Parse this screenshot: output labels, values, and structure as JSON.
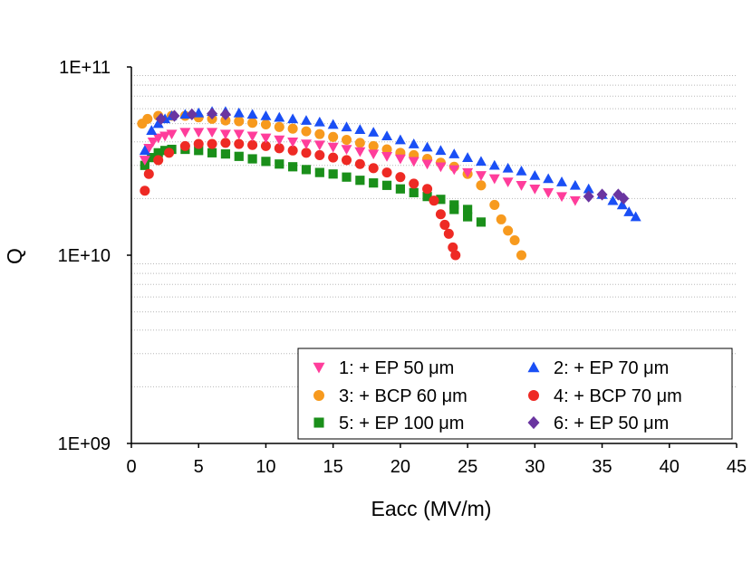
{
  "chart_data": {
    "type": "scatter",
    "xlabel": "Eacc (MV/m)",
    "ylabel": "Q",
    "xlim": [
      0,
      45
    ],
    "ylim": [
      1000000000.0,
      100000000000.0
    ],
    "yscale": "log",
    "x_ticks": [
      "0",
      "5",
      "10",
      "15",
      "20",
      "25",
      "30",
      "35",
      "40",
      "45"
    ],
    "y_ticks": [
      "1E+09",
      "1E+10",
      "1E+11"
    ],
    "grid": "horizontal-minor-dotted",
    "legend_placement": "bottom-right-inside",
    "series": [
      {
        "name": "1: + EP 50 μm",
        "marker": "triangle-down",
        "color": "#ff3d9b",
        "points": [
          [
            1.0,
            32000000000.0
          ],
          [
            1.3,
            37000000000.0
          ],
          [
            1.6,
            40000000000.0
          ],
          [
            2.0,
            42000000000.0
          ],
          [
            2.5,
            43000000000.0
          ],
          [
            3.0,
            44000000000.0
          ],
          [
            4.0,
            45000000000.0
          ],
          [
            5.0,
            45000000000.0
          ],
          [
            6.0,
            45000000000.0
          ],
          [
            7.0,
            44000000000.0
          ],
          [
            8.0,
            44000000000.0
          ],
          [
            9.0,
            43000000000.0
          ],
          [
            10.0,
            42000000000.0
          ],
          [
            11.0,
            41000000000.0
          ],
          [
            12.0,
            40000000000.0
          ],
          [
            13.0,
            39000000000.0
          ],
          [
            14.0,
            38500000000.0
          ],
          [
            15.0,
            37500000000.0
          ],
          [
            16.0,
            36500000000.0
          ],
          [
            17.0,
            35500000000.0
          ],
          [
            18.0,
            34500000000.0
          ],
          [
            19.0,
            33500000000.0
          ],
          [
            20.0,
            32500000000.0
          ],
          [
            21.0,
            31500000000.0
          ],
          [
            22.0,
            30500000000.0
          ],
          [
            23.0,
            29500000000.0
          ],
          [
            24.0,
            28500000000.0
          ],
          [
            25.0,
            27500000000.0
          ],
          [
            26.0,
            26500000000.0
          ],
          [
            27.0,
            25500000000.0
          ],
          [
            28.0,
            24500000000.0
          ],
          [
            29.0,
            23500000000.0
          ],
          [
            30.0,
            22500000000.0
          ],
          [
            31.0,
            21500000000.0
          ],
          [
            32.0,
            20500000000.0
          ],
          [
            33.0,
            19500000000.0
          ]
        ]
      },
      {
        "name": "2: + EP 70 μm",
        "marker": "triangle-up",
        "color": "#1a4ff5",
        "points": [
          [
            1.0,
            36000000000.0
          ],
          [
            1.5,
            46000000000.0
          ],
          [
            2.0,
            50000000000.0
          ],
          [
            2.5,
            53000000000.0
          ],
          [
            3.0,
            55000000000.0
          ],
          [
            4.0,
            56000000000.0
          ],
          [
            5.0,
            57000000000.0
          ],
          [
            6.0,
            58000000000.0
          ],
          [
            7.0,
            58000000000.0
          ],
          [
            8.0,
            57000000000.0
          ],
          [
            9.0,
            56000000000.0
          ],
          [
            10.0,
            55000000000.0
          ],
          [
            11.0,
            54000000000.0
          ],
          [
            12.0,
            53000000000.0
          ],
          [
            13.0,
            52000000000.0
          ],
          [
            14.0,
            51000000000.0
          ],
          [
            15.0,
            49500000000.0
          ],
          [
            16.0,
            48000000000.0
          ],
          [
            17.0,
            46500000000.0
          ],
          [
            18.0,
            45000000000.0
          ],
          [
            19.0,
            43000000000.0
          ],
          [
            20.0,
            41000000000.0
          ],
          [
            21.0,
            39000000000.0
          ],
          [
            22.0,
            37500000000.0
          ],
          [
            23.0,
            36000000000.0
          ],
          [
            24.0,
            34500000000.0
          ],
          [
            25.0,
            33000000000.0
          ],
          [
            26.0,
            31500000000.0
          ],
          [
            27.0,
            30000000000.0
          ],
          [
            28.0,
            29000000000.0
          ],
          [
            29.0,
            28000000000.0
          ],
          [
            30.0,
            26500000000.0
          ],
          [
            31.0,
            25500000000.0
          ],
          [
            32.0,
            24500000000.0
          ],
          [
            33.0,
            23500000000.0
          ],
          [
            34.0,
            22500000000.0
          ],
          [
            35.0,
            21000000000.0
          ],
          [
            35.8,
            19500000000.0
          ],
          [
            36.5,
            18500000000.0
          ],
          [
            37.0,
            17000000000.0
          ],
          [
            37.5,
            16000000000.0
          ]
        ]
      },
      {
        "name": "3: + BCP 60 μm",
        "marker": "circle",
        "color": "#f79a1e",
        "points": [
          [
            0.8,
            50000000000.0
          ],
          [
            1.2,
            53000000000.0
          ],
          [
            2.0,
            55000000000.0
          ],
          [
            3.0,
            55000000000.0
          ],
          [
            4.0,
            55000000000.0
          ],
          [
            5.0,
            54000000000.0
          ],
          [
            6.0,
            53000000000.0
          ],
          [
            7.0,
            52000000000.0
          ],
          [
            8.0,
            51500000000.0
          ],
          [
            9.0,
            50500000000.0
          ],
          [
            10.0,
            49500000000.0
          ],
          [
            11.0,
            48000000000.0
          ],
          [
            12.0,
            47000000000.0
          ],
          [
            13.0,
            45500000000.0
          ],
          [
            14.0,
            44000000000.0
          ],
          [
            15.0,
            42500000000.0
          ],
          [
            16.0,
            41000000000.0
          ],
          [
            17.0,
            39500000000.0
          ],
          [
            18.0,
            38000000000.0
          ],
          [
            19.0,
            36500000000.0
          ],
          [
            20.0,
            35000000000.0
          ],
          [
            21.0,
            34000000000.0
          ],
          [
            22.0,
            32500000000.0
          ],
          [
            23.0,
            31000000000.0
          ],
          [
            24.0,
            29500000000.0
          ],
          [
            25.0,
            27000000000.0
          ],
          [
            26.0,
            23500000000.0
          ],
          [
            27.0,
            18500000000.0
          ],
          [
            27.5,
            15500000000.0
          ],
          [
            28.0,
            13500000000.0
          ],
          [
            28.5,
            12000000000.0
          ],
          [
            29.0,
            10000000000.0
          ]
        ]
      },
      {
        "name": "4: + BCP 70 μm",
        "marker": "circle",
        "color": "#ee2a24",
        "points": [
          [
            1.0,
            22000000000.0
          ],
          [
            1.3,
            27000000000.0
          ],
          [
            2.0,
            32000000000.0
          ],
          [
            2.8,
            35000000000.0
          ],
          [
            4.0,
            38000000000.0
          ],
          [
            5.0,
            39000000000.0
          ],
          [
            6.0,
            39000000000.0
          ],
          [
            7.0,
            39500000000.0
          ],
          [
            8.0,
            39000000000.0
          ],
          [
            9.0,
            38500000000.0
          ],
          [
            10.0,
            38000000000.0
          ],
          [
            11.0,
            37000000000.0
          ],
          [
            12.0,
            36000000000.0
          ],
          [
            13.0,
            35000000000.0
          ],
          [
            14.0,
            34000000000.0
          ],
          [
            15.0,
            33000000000.0
          ],
          [
            16.0,
            32000000000.0
          ],
          [
            17.0,
            30500000000.0
          ],
          [
            18.0,
            29000000000.0
          ],
          [
            19.0,
            27500000000.0
          ],
          [
            20.0,
            26000000000.0
          ],
          [
            21.0,
            24000000000.0
          ],
          [
            22.0,
            22500000000.0
          ],
          [
            22.5,
            19500000000.0
          ],
          [
            23.0,
            16500000000.0
          ],
          [
            23.3,
            14500000000.0
          ],
          [
            23.6,
            13000000000.0
          ],
          [
            23.9,
            11000000000.0
          ],
          [
            24.1,
            10000000000.0
          ]
        ]
      },
      {
        "name": "5: + EP 100 μm",
        "marker": "square",
        "color": "#1a8f1a",
        "points": [
          [
            1.0,
            30000000000.0
          ],
          [
            1.5,
            33000000000.0
          ],
          [
            2.0,
            35000000000.0
          ],
          [
            2.5,
            36000000000.0
          ],
          [
            3.0,
            36500000000.0
          ],
          [
            4.0,
            36500000000.0
          ],
          [
            5.0,
            36000000000.0
          ],
          [
            6.0,
            35000000000.0
          ],
          [
            7.0,
            34500000000.0
          ],
          [
            8.0,
            33500000000.0
          ],
          [
            9.0,
            32500000000.0
          ],
          [
            10.0,
            31500000000.0
          ],
          [
            11.0,
            30500000000.0
          ],
          [
            12.0,
            29500000000.0
          ],
          [
            13.0,
            28500000000.0
          ],
          [
            14.0,
            27500000000.0
          ],
          [
            15.0,
            27000000000.0
          ],
          [
            16.0,
            26000000000.0
          ],
          [
            17.0,
            25000000000.0
          ],
          [
            18.0,
            24200000000.0
          ],
          [
            19.0,
            23500000000.0
          ],
          [
            20.0,
            22500000000.0
          ],
          [
            21.0,
            21500000000.0
          ],
          [
            22.0,
            20500000000.0
          ],
          [
            23.0,
            19800000000.0
          ],
          [
            24.0,
            18500000000.0
          ],
          [
            24.0,
            17500000000.0
          ],
          [
            25.0,
            17500000000.0
          ],
          [
            25.0,
            16000000000.0
          ],
          [
            26.0,
            15000000000.0
          ]
        ]
      },
      {
        "name": "6: + EP 50 μm",
        "marker": "diamond",
        "color": "#6a35a0",
        "points": [
          [
            2.2,
            53000000000.0
          ],
          [
            3.2,
            55000000000.0
          ],
          [
            4.5,
            56000000000.0
          ],
          [
            6.0,
            56500000000.0
          ],
          [
            7.0,
            56000000000.0
          ],
          [
            34.0,
            20500000000.0
          ],
          [
            35.0,
            21000000000.0
          ],
          [
            36.2,
            21000000000.0
          ],
          [
            36.6,
            20000000000.0
          ]
        ]
      }
    ],
    "legend": {
      "rows": [
        [
          "1: + EP 50 μm",
          "2: + EP 70 μm"
        ],
        [
          "3: + BCP 60 μm",
          "4: + BCP 70 μm"
        ],
        [
          "5: + EP 100 μm",
          "6: + EP 50 μm"
        ]
      ]
    }
  }
}
